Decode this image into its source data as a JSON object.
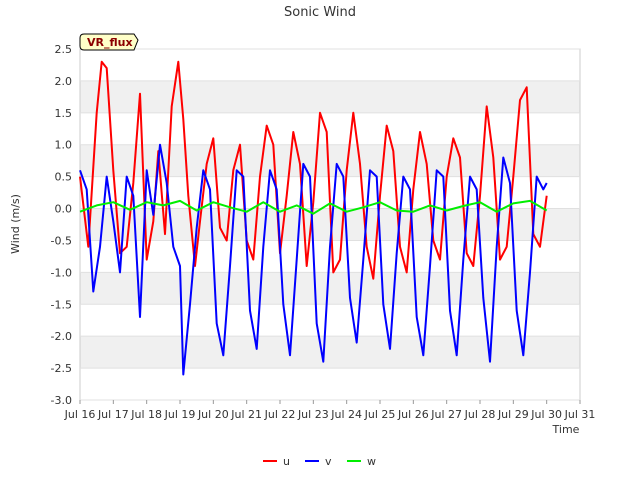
{
  "chart_data": {
    "type": "line",
    "title": "Sonic Wind",
    "badge": "VR_flux",
    "xlabel": "Time",
    "ylabel": "Wind (m/s)",
    "ylim": [
      -3.0,
      2.5
    ],
    "xlim": [
      16,
      31
    ],
    "yticks": [
      "-3.0",
      "-2.5",
      "-2.0",
      "-1.5",
      "-1.0",
      "-0.5",
      "0.0",
      "0.5",
      "1.0",
      "1.5",
      "2.0",
      "2.5"
    ],
    "ytick_values": [
      -3.0,
      -2.5,
      -2.0,
      -1.5,
      -1.0,
      -0.5,
      0.0,
      0.5,
      1.0,
      1.5,
      2.0,
      2.5
    ],
    "xticks": [
      "Jul 16",
      "Jul 17",
      "Jul 18",
      "Jul 19",
      "Jul 20",
      "Jul 21",
      "Jul 22",
      "Jul 23",
      "Jul 24",
      "Jul 25",
      "Jul 26",
      "Jul 27",
      "Jul 28",
      "Jul 29",
      "Jul 30",
      "Jul 31"
    ],
    "xtick_values": [
      16,
      17,
      18,
      19,
      20,
      21,
      22,
      23,
      24,
      25,
      26,
      27,
      28,
      29,
      30,
      31
    ],
    "grid": "horizontal bands",
    "legend_position": "bottom",
    "series": [
      {
        "name": "u",
        "color": "#ff0000",
        "x": [
          16.0,
          16.25,
          16.5,
          16.65,
          16.8,
          17.0,
          17.2,
          17.4,
          17.6,
          17.8,
          18.0,
          18.2,
          18.35,
          18.55,
          18.75,
          18.95,
          19.1,
          19.25,
          19.45,
          19.6,
          19.8,
          20.0,
          20.2,
          20.4,
          20.6,
          20.8,
          21.0,
          21.2,
          21.4,
          21.6,
          21.8,
          22.0,
          22.2,
          22.4,
          22.6,
          22.8,
          23.0,
          23.2,
          23.4,
          23.6,
          23.8,
          24.0,
          24.2,
          24.4,
          24.6,
          24.8,
          25.0,
          25.2,
          25.4,
          25.6,
          25.8,
          26.0,
          26.2,
          26.4,
          26.6,
          26.8,
          27.0,
          27.2,
          27.4,
          27.6,
          27.8,
          28.0,
          28.2,
          28.4,
          28.6,
          28.8,
          29.0,
          29.2,
          29.4,
          29.6,
          29.8,
          30.0
        ],
        "y": [
          0.5,
          -0.6,
          1.5,
          2.3,
          2.2,
          0.6,
          -0.7,
          -0.6,
          0.4,
          1.8,
          -0.8,
          -0.2,
          0.9,
          -0.4,
          1.6,
          2.3,
          1.4,
          0.2,
          -0.9,
          -0.2,
          0.7,
          1.1,
          -0.3,
          -0.5,
          0.6,
          1.0,
          -0.5,
          -0.8,
          0.5,
          1.3,
          1.0,
          -0.7,
          0.2,
          1.2,
          0.7,
          -0.9,
          0.1,
          1.5,
          1.2,
          -1.0,
          -0.8,
          0.6,
          1.5,
          0.7,
          -0.6,
          -1.1,
          0.2,
          1.3,
          0.9,
          -0.6,
          -1.0,
          0.3,
          1.2,
          0.7,
          -0.5,
          -0.8,
          0.5,
          1.1,
          0.8,
          -0.7,
          -0.9,
          0.2,
          1.6,
          0.8,
          -0.8,
          -0.6,
          0.5,
          1.7,
          1.9,
          -0.4,
          -0.6,
          0.2
        ]
      },
      {
        "name": "v",
        "color": "#0000ff",
        "x": [
          16.0,
          16.2,
          16.4,
          16.6,
          16.8,
          17.0,
          17.2,
          17.4,
          17.6,
          17.8,
          18.0,
          18.2,
          18.4,
          18.6,
          18.8,
          19.0,
          19.1,
          19.3,
          19.5,
          19.7,
          19.9,
          20.1,
          20.3,
          20.5,
          20.7,
          20.9,
          21.1,
          21.3,
          21.5,
          21.7,
          21.9,
          22.1,
          22.3,
          22.5,
          22.7,
          22.9,
          23.1,
          23.3,
          23.5,
          23.7,
          23.9,
          24.1,
          24.3,
          24.5,
          24.7,
          24.9,
          25.1,
          25.3,
          25.5,
          25.7,
          25.9,
          26.1,
          26.3,
          26.5,
          26.7,
          26.9,
          27.1,
          27.3,
          27.5,
          27.7,
          27.9,
          28.1,
          28.3,
          28.5,
          28.7,
          28.9,
          29.1,
          29.3,
          29.5,
          29.7,
          29.9,
          30.0
        ],
        "y": [
          0.6,
          0.3,
          -1.3,
          -0.6,
          0.5,
          -0.2,
          -1.0,
          0.5,
          0.2,
          -1.7,
          0.6,
          -0.1,
          1.0,
          0.4,
          -0.6,
          -0.9,
          -2.6,
          -1.5,
          -0.3,
          0.6,
          0.3,
          -1.8,
          -2.3,
          -0.9,
          0.6,
          0.5,
          -1.6,
          -2.2,
          -0.6,
          0.6,
          0.3,
          -1.5,
          -2.3,
          -0.8,
          0.7,
          0.5,
          -1.8,
          -2.4,
          -0.6,
          0.7,
          0.5,
          -1.4,
          -2.1,
          -0.8,
          0.6,
          0.5,
          -1.5,
          -2.2,
          -0.7,
          0.5,
          0.3,
          -1.7,
          -2.3,
          -0.9,
          0.6,
          0.5,
          -1.6,
          -2.3,
          -0.8,
          0.5,
          0.3,
          -1.4,
          -2.4,
          -0.6,
          0.8,
          0.4,
          -1.6,
          -2.3,
          -1.0,
          0.5,
          0.3,
          0.4
        ]
      },
      {
        "name": "w",
        "color": "#00ee00",
        "x": [
          16.0,
          16.5,
          17.0,
          17.5,
          18.0,
          18.5,
          19.0,
          19.5,
          20.0,
          20.5,
          21.0,
          21.5,
          22.0,
          22.5,
          23.0,
          23.5,
          24.0,
          24.5,
          25.0,
          25.5,
          26.0,
          26.5,
          27.0,
          27.5,
          28.0,
          28.5,
          29.0,
          29.5,
          30.0
        ],
        "y": [
          -0.05,
          0.05,
          0.1,
          -0.02,
          0.1,
          0.05,
          0.12,
          -0.03,
          0.1,
          0.02,
          -0.05,
          0.1,
          -0.05,
          0.05,
          -0.08,
          0.08,
          -0.05,
          0.02,
          0.1,
          -0.03,
          -0.05,
          0.05,
          -0.03,
          0.04,
          0.1,
          -0.05,
          0.08,
          0.12,
          -0.03
        ]
      }
    ]
  }
}
